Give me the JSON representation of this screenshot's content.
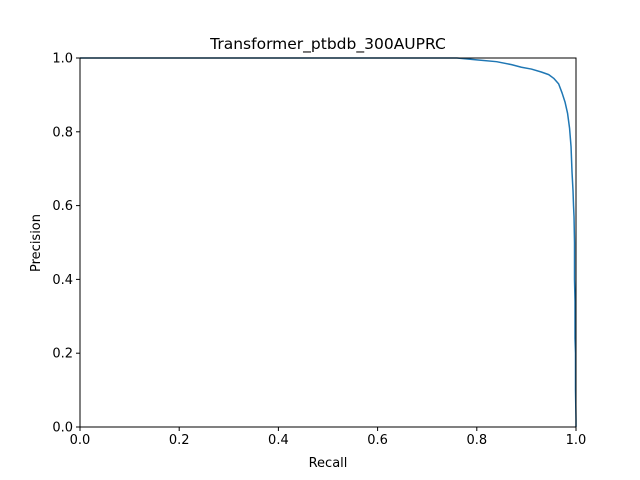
{
  "chart_data": {
    "type": "line",
    "title": "Transformer_ptbdb_300AUPRC",
    "xlabel": "Recall",
    "ylabel": "Precision",
    "xlim": [
      0.0,
      1.0
    ],
    "ylim": [
      0.0,
      1.0
    ],
    "xticks": [
      0.0,
      0.2,
      0.4,
      0.6,
      0.8,
      1.0
    ],
    "yticks": [
      0.0,
      0.2,
      0.4,
      0.6,
      0.8,
      1.0
    ],
    "xtick_labels": [
      "0.0",
      "0.2",
      "0.4",
      "0.6",
      "0.8",
      "1.0"
    ],
    "ytick_labels": [
      "0.0",
      "0.2",
      "0.4",
      "0.6",
      "0.8",
      "1.0"
    ],
    "grid": false,
    "legend": false,
    "series": [
      {
        "color": "#1f77b4",
        "x": [
          0.0,
          0.7,
          0.76,
          0.8,
          0.84,
          0.87,
          0.89,
          0.91,
          0.93,
          0.945,
          0.955,
          0.965,
          0.972,
          0.978,
          0.983,
          0.987,
          0.99,
          0.992,
          0.994,
          0.995,
          0.996,
          0.997,
          0.997,
          0.998,
          0.998,
          0.999,
          0.999,
          1.0,
          1.0
        ],
        "y": [
          1.0,
          1.0,
          1.0,
          0.995,
          0.99,
          0.982,
          0.975,
          0.97,
          0.962,
          0.955,
          0.945,
          0.93,
          0.905,
          0.88,
          0.85,
          0.81,
          0.76,
          0.69,
          0.64,
          0.6,
          0.57,
          0.5,
          0.4,
          0.34,
          0.24,
          0.2,
          0.1,
          0.02,
          0.0
        ]
      }
    ]
  }
}
